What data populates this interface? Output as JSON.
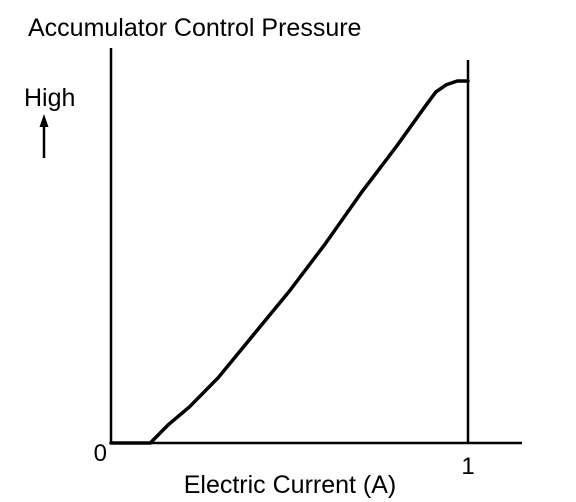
{
  "chart_data": {
    "type": "line",
    "title": "Accumulator Control Pressure",
    "ylabel": "High",
    "xlabel": "Electric Current (A)",
    "x_ticks": [
      {
        "value": 0,
        "label": "0"
      },
      {
        "value": 1,
        "label": "1"
      }
    ],
    "xlim": [
      0,
      1.15
    ],
    "ylim": [
      0,
      1.0
    ],
    "grid": false,
    "legend": "none",
    "line_color": "#000000",
    "series": [
      {
        "x": [
          0,
          0.11,
          0.16,
          0.22,
          0.3,
          0.4,
          0.5,
          0.6,
          0.7,
          0.8,
          0.88,
          0.91,
          0.94,
          0.97,
          1.0
        ],
        "y": [
          0,
          0,
          0.05,
          0.1,
          0.18,
          0.3,
          0.42,
          0.55,
          0.69,
          0.82,
          0.93,
          0.97,
          0.99,
          1.0,
          1.0
        ]
      }
    ]
  }
}
